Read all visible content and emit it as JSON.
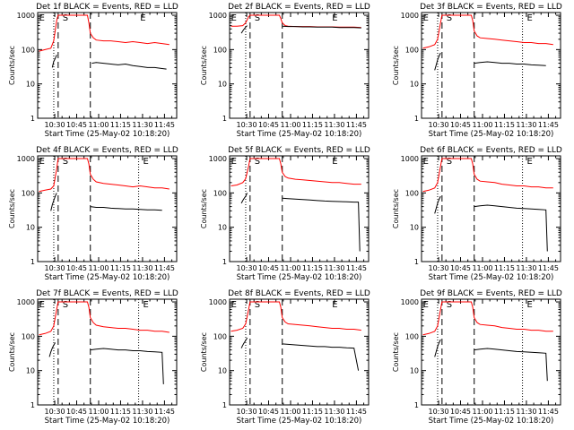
{
  "figure": {
    "background": "#ffffff",
    "axis_color": "#000000",
    "events_color": "#000000",
    "lld_color": "#ff0000"
  },
  "shared": {
    "ylabel": "Counts/sec",
    "xlabel": "Start Time (25-May-02 10:18:20)",
    "x_ticks": [
      "10:30",
      "10:45",
      "11:00",
      "11:15",
      "11:30",
      "11:45"
    ],
    "y_ticks": [
      "1",
      "10",
      "100",
      "1000"
    ],
    "marker_s": "S",
    "marker_e": "E"
  },
  "chart_data": [
    {
      "type": "line",
      "title": "Det 1f BLACK = Events, RED = LLD",
      "x_unit": "minutes since 10:18:20",
      "xlim": [
        0,
        95
      ],
      "ylim": [
        1,
        1200
      ],
      "yscale": "log",
      "markers": {
        "E_left": 1,
        "S": 17,
        "dotted": 11,
        "dashed": [
          14,
          36
        ],
        "E_right": 70
      },
      "series": [
        {
          "name": "LLD",
          "color": "#ff0000",
          "x": [
            1,
            5,
            9,
            11,
            13,
            14,
            16,
            18,
            19,
            20,
            22,
            24,
            26,
            28,
            30,
            32,
            34,
            35,
            36,
            38,
            40,
            45,
            50,
            55,
            60,
            65,
            70,
            75,
            80,
            85,
            90
          ],
          "y": [
            90,
            100,
            110,
            180,
            700,
            1000,
            1000,
            1000,
            1000,
            1000,
            1000,
            1000,
            1000,
            1000,
            1000,
            1000,
            1000,
            600,
            300,
            220,
            190,
            180,
            180,
            170,
            160,
            170,
            160,
            150,
            160,
            150,
            140
          ]
        },
        {
          "name": "Events",
          "color": "#000000",
          "x": [
            10,
            11,
            12,
            13,
            37,
            40,
            45,
            50,
            55,
            60,
            65,
            70,
            75,
            80,
            85,
            88
          ],
          "y": [
            30,
            45,
            55,
            70,
            40,
            42,
            40,
            38,
            36,
            38,
            34,
            32,
            30,
            30,
            28,
            27
          ]
        }
      ]
    },
    {
      "type": "line",
      "title": "Det 2f BLACK = Events, RED = LLD",
      "x_unit": "minutes since 10:18:20",
      "xlim": [
        0,
        95
      ],
      "ylim": [
        1,
        1200
      ],
      "yscale": "log",
      "markers": {
        "E_left": 1,
        "S": 17,
        "dotted": 11,
        "dashed": [
          14,
          36
        ],
        "E_right": 70
      },
      "series": [
        {
          "name": "LLD",
          "color": "#ff0000",
          "x": [
            1,
            5,
            9,
            11,
            13,
            14,
            16,
            18,
            20,
            25,
            30,
            34,
            35,
            36,
            38,
            40,
            45,
            50,
            55,
            60,
            65,
            70,
            75,
            80,
            85,
            90
          ],
          "y": [
            480,
            480,
            500,
            600,
            900,
            1000,
            1000,
            1000,
            1000,
            1000,
            1000,
            1000,
            800,
            600,
            500,
            480,
            470,
            470,
            470,
            460,
            460,
            460,
            450,
            450,
            450,
            440
          ]
        },
        {
          "name": "Events",
          "color": "#000000",
          "x": [
            8,
            9,
            10,
            11,
            12,
            36,
            40,
            45,
            50,
            55,
            60,
            65,
            70,
            75,
            80,
            85,
            90
          ],
          "y": [
            300,
            350,
            400,
            450,
            500,
            480,
            470,
            470,
            460,
            460,
            450,
            450,
            450,
            440,
            440,
            440,
            430
          ]
        }
      ]
    },
    {
      "type": "line",
      "title": "Det 3f BLACK = Events, RED = LLD",
      "x_unit": "minutes since 10:18:20",
      "xlim": [
        0,
        95
      ],
      "ylim": [
        1,
        1200
      ],
      "yscale": "log",
      "markers": {
        "E_left": 1,
        "S": 17,
        "dotted": [
          11,
          69
        ],
        "dashed": [
          14,
          36
        ],
        "E_right": 72
      },
      "series": [
        {
          "name": "LLD",
          "color": "#ff0000",
          "x": [
            1,
            5,
            9,
            11,
            13,
            14,
            16,
            18,
            20,
            25,
            30,
            34,
            35,
            36,
            38,
            40,
            45,
            50,
            55,
            60,
            65,
            70,
            75,
            80,
            85,
            90
          ],
          "y": [
            110,
            120,
            140,
            200,
            600,
            1000,
            1000,
            1000,
            1000,
            1000,
            1000,
            1000,
            700,
            350,
            250,
            220,
            210,
            200,
            190,
            180,
            170,
            160,
            160,
            150,
            150,
            140
          ]
        },
        {
          "name": "Events",
          "color": "#000000",
          "x": [
            9,
            10,
            11,
            12,
            13,
            36,
            40,
            45,
            50,
            55,
            60,
            65,
            70,
            75,
            80,
            85
          ],
          "y": [
            25,
            35,
            50,
            65,
            80,
            40,
            42,
            44,
            42,
            40,
            40,
            38,
            38,
            36,
            35,
            34
          ]
        }
      ]
    },
    {
      "type": "line",
      "title": "Det 4f BLACK = Events, RED = LLD",
      "x_unit": "minutes since 10:18:20",
      "xlim": [
        0,
        95
      ],
      "ylim": [
        1,
        1200
      ],
      "yscale": "log",
      "markers": {
        "E_left": 1,
        "S": 17,
        "dotted": [
          11,
          69
        ],
        "dashed": [
          14,
          36
        ],
        "E_right": 72
      },
      "series": [
        {
          "name": "LLD",
          "color": "#ff0000",
          "x": [
            1,
            5,
            9,
            11,
            13,
            14,
            16,
            18,
            20,
            25,
            30,
            34,
            35,
            36,
            38,
            40,
            45,
            50,
            55,
            60,
            65,
            70,
            75,
            80,
            85,
            90
          ],
          "y": [
            110,
            120,
            130,
            160,
            500,
            1000,
            1000,
            1000,
            1000,
            1000,
            1000,
            1000,
            700,
            350,
            250,
            210,
            190,
            180,
            170,
            160,
            150,
            160,
            150,
            140,
            140,
            130
          ]
        },
        {
          "name": "Events",
          "color": "#000000",
          "x": [
            9,
            10,
            11,
            12,
            13,
            36,
            40,
            45,
            50,
            55,
            60,
            65,
            70,
            75,
            80,
            85
          ],
          "y": [
            30,
            45,
            60,
            80,
            100,
            40,
            38,
            38,
            36,
            35,
            34,
            34,
            33,
            32,
            32,
            31
          ]
        }
      ]
    },
    {
      "type": "line",
      "title": "Det 5f BLACK = Events, RED = LLD",
      "x_unit": "minutes since 10:18:20",
      "xlim": [
        0,
        95
      ],
      "ylim": [
        1,
        1200
      ],
      "yscale": "log",
      "markers": {
        "E_left": 1,
        "S": 17,
        "dotted": 11,
        "dashed": [
          14,
          36
        ],
        "E_right": 70
      },
      "series": [
        {
          "name": "LLD",
          "color": "#ff0000",
          "x": [
            1,
            5,
            9,
            11,
            13,
            14,
            16,
            18,
            20,
            25,
            30,
            34,
            35,
            36,
            38,
            40,
            45,
            50,
            55,
            60,
            65,
            70,
            75,
            80,
            85,
            90
          ],
          "y": [
            160,
            170,
            200,
            260,
            600,
            1000,
            1000,
            1000,
            1000,
            1000,
            1000,
            1000,
            700,
            400,
            300,
            270,
            250,
            240,
            230,
            220,
            210,
            200,
            200,
            190,
            180,
            180
          ]
        },
        {
          "name": "Events",
          "color": "#000000",
          "x": [
            8,
            9,
            10,
            11,
            12,
            36,
            40,
            45,
            50,
            55,
            60,
            65,
            70,
            75,
            80,
            85,
            88,
            89
          ],
          "y": [
            50,
            60,
            70,
            80,
            100,
            70,
            68,
            66,
            64,
            62,
            60,
            58,
            57,
            56,
            55,
            54,
            54,
            2
          ]
        }
      ]
    },
    {
      "type": "line",
      "title": "Det 6f BLACK = Events, RED = LLD",
      "x_unit": "minutes since 10:18:20",
      "xlim": [
        0,
        95
      ],
      "ylim": [
        1,
        1200
      ],
      "yscale": "log",
      "markers": {
        "E_left": 1,
        "S": 17,
        "dotted": [
          11,
          69
        ],
        "dashed": [
          14,
          36
        ],
        "E_right": 72
      },
      "series": [
        {
          "name": "LLD",
          "color": "#ff0000",
          "x": [
            1,
            5,
            9,
            11,
            13,
            14,
            16,
            18,
            20,
            25,
            30,
            34,
            35,
            36,
            38,
            40,
            45,
            50,
            55,
            60,
            65,
            70,
            75,
            80,
            85,
            90
          ],
          "y": [
            110,
            120,
            140,
            200,
            600,
            1000,
            1000,
            1000,
            1000,
            1000,
            1000,
            1000,
            700,
            350,
            250,
            220,
            210,
            200,
            180,
            170,
            160,
            160,
            150,
            150,
            140,
            140
          ]
        },
        {
          "name": "Events",
          "color": "#000000",
          "x": [
            9,
            10,
            11,
            12,
            13,
            36,
            40,
            45,
            50,
            55,
            60,
            65,
            70,
            75,
            80,
            85,
            86
          ],
          "y": [
            25,
            35,
            50,
            65,
            80,
            40,
            42,
            44,
            42,
            40,
            38,
            36,
            35,
            34,
            33,
            32,
            2
          ]
        }
      ]
    },
    {
      "type": "line",
      "title": "Det 7f BLACK = Events, RED = LLD",
      "x_unit": "minutes since 10:18:20",
      "xlim": [
        0,
        95
      ],
      "ylim": [
        1,
        1200
      ],
      "yscale": "log",
      "markers": {
        "E_left": 1,
        "S": 17,
        "dotted": [
          11,
          69
        ],
        "dashed": [
          14,
          36
        ],
        "E_right": 72
      },
      "series": [
        {
          "name": "LLD",
          "color": "#ff0000",
          "x": [
            1,
            5,
            9,
            11,
            13,
            14,
            16,
            18,
            20,
            25,
            30,
            34,
            35,
            36,
            38,
            40,
            45,
            50,
            55,
            60,
            65,
            70,
            75,
            80,
            85,
            90
          ],
          "y": [
            110,
            120,
            140,
            200,
            600,
            1000,
            1000,
            1000,
            1000,
            1000,
            1000,
            1000,
            700,
            350,
            250,
            210,
            190,
            180,
            170,
            170,
            160,
            150,
            150,
            140,
            140,
            130
          ]
        },
        {
          "name": "Events",
          "color": "#000000",
          "x": [
            8,
            9,
            10,
            11,
            12,
            36,
            40,
            45,
            50,
            55,
            60,
            65,
            70,
            75,
            80,
            85,
            86
          ],
          "y": [
            25,
            35,
            45,
            55,
            65,
            40,
            42,
            44,
            42,
            40,
            40,
            38,
            38,
            36,
            35,
            34,
            4
          ]
        }
      ]
    },
    {
      "type": "line",
      "title": "Det 8f BLACK = Events, RED = LLD",
      "x_unit": "minutes since 10:18:20",
      "xlim": [
        0,
        95
      ],
      "ylim": [
        1,
        1200
      ],
      "yscale": "log",
      "markers": {
        "E_left": 1,
        "S": 17,
        "dotted": 11,
        "dashed": [
          14,
          36
        ],
        "E_right": 70
      },
      "series": [
        {
          "name": "LLD",
          "color": "#ff0000",
          "x": [
            1,
            5,
            9,
            11,
            13,
            14,
            16,
            18,
            20,
            25,
            30,
            34,
            35,
            36,
            38,
            40,
            45,
            50,
            55,
            60,
            65,
            70,
            75,
            80,
            85,
            90
          ],
          "y": [
            140,
            150,
            170,
            230,
            600,
            1000,
            1000,
            1000,
            1000,
            1000,
            1000,
            1000,
            700,
            350,
            260,
            230,
            220,
            210,
            200,
            190,
            180,
            170,
            170,
            160,
            160,
            150
          ]
        },
        {
          "name": "Events",
          "color": "#000000",
          "x": [
            8,
            9,
            10,
            11,
            12,
            36,
            40,
            45,
            50,
            55,
            60,
            65,
            70,
            75,
            80,
            85,
            88
          ],
          "y": [
            45,
            55,
            65,
            75,
            90,
            60,
            58,
            56,
            54,
            52,
            50,
            50,
            48,
            48,
            46,
            45,
            10
          ]
        }
      ]
    },
    {
      "type": "line",
      "title": "Det 9f BLACK = Events, RED = LLD",
      "x_unit": "minutes since 10:18:20",
      "xlim": [
        0,
        95
      ],
      "ylim": [
        1,
        1200
      ],
      "yscale": "log",
      "markers": {
        "E_left": 1,
        "S": 17,
        "dotted": [
          11,
          69
        ],
        "dashed": [
          14,
          36
        ],
        "E_right": 72
      },
      "series": [
        {
          "name": "LLD",
          "color": "#ff0000",
          "x": [
            1,
            5,
            9,
            11,
            13,
            14,
            16,
            18,
            20,
            25,
            30,
            34,
            35,
            36,
            38,
            40,
            45,
            50,
            55,
            60,
            65,
            70,
            75,
            80,
            85,
            90
          ],
          "y": [
            110,
            120,
            140,
            200,
            600,
            1000,
            1000,
            1000,
            1000,
            1000,
            1000,
            1000,
            700,
            350,
            250,
            220,
            210,
            200,
            180,
            170,
            160,
            160,
            150,
            150,
            140,
            140
          ]
        },
        {
          "name": "Events",
          "color": "#000000",
          "x": [
            9,
            10,
            11,
            12,
            13,
            36,
            40,
            45,
            50,
            55,
            60,
            65,
            70,
            75,
            80,
            85,
            86
          ],
          "y": [
            25,
            35,
            50,
            65,
            80,
            40,
            42,
            44,
            42,
            40,
            38,
            36,
            35,
            34,
            33,
            32,
            5
          ]
        }
      ]
    }
  ]
}
